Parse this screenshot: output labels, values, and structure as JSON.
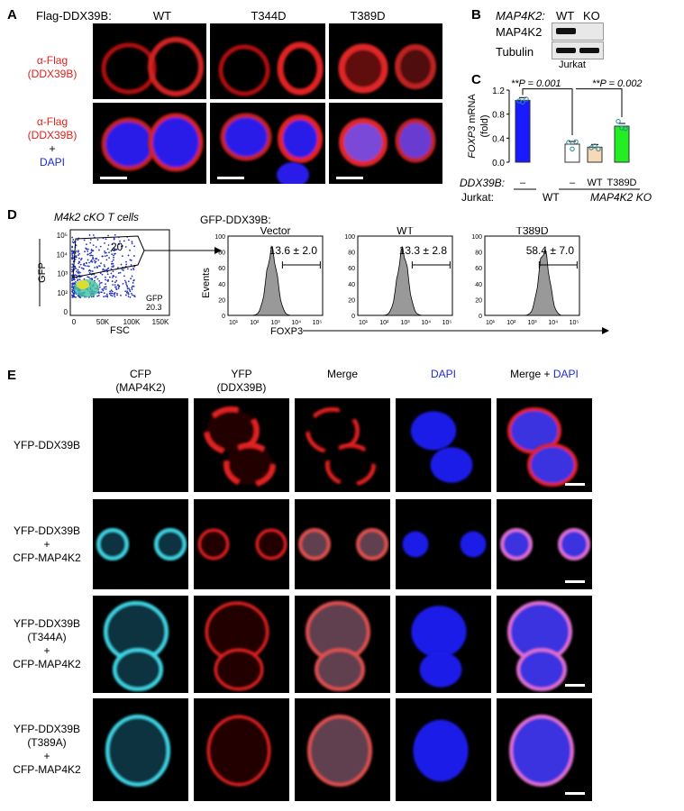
{
  "panelA": {
    "label": "A",
    "header": "Flag-DDX39B:",
    "columns": [
      "WT",
      "T344D",
      "T389D"
    ],
    "row1": [
      "α-Flag",
      "(DDX39B)"
    ],
    "row2": [
      "α-Flag",
      "(DDX39B)",
      "+",
      "DAPI"
    ]
  },
  "panelB": {
    "label": "B",
    "gene": "MAP4K2:",
    "lanes": [
      "WT",
      "KO"
    ],
    "bands": [
      "MAP4K2",
      "Tubulin"
    ],
    "cell": "Jurkat"
  },
  "panelC": {
    "label": "C",
    "pvals": [
      "**P = 0.001",
      "**P = 0.002"
    ],
    "rowDDX": "DDX39B:",
    "rowDDXvals": [
      "–",
      "–",
      "WT",
      "T389D"
    ],
    "rowJurkat": "Jurkat:",
    "jurkatWT": "WT",
    "jurkatKO": "MAP4K2  KO",
    "chart_data": {
      "type": "bar",
      "ylabel": "FOXP3 mRNA (fold)",
      "ylim": [
        0,
        1.2
      ],
      "yticks": [
        "0.0",
        "0.4",
        "0.8",
        "1.2"
      ],
      "categories": [
        "WT –",
        "KO –",
        "KO WT",
        "KO T389D"
      ],
      "values": [
        1.03,
        0.3,
        0.25,
        0.6
      ],
      "points": [
        [
          1.02,
          1.0,
          1.05
        ],
        [
          0.33,
          0.22,
          0.34
        ],
        [
          0.24,
          0.27,
          0.22
        ],
        [
          0.68,
          0.57,
          0.56
        ]
      ],
      "colors": [
        "#1a1aff",
        "#ffffff",
        "#f5d9b8",
        "#22ee22"
      ]
    }
  },
  "panelD": {
    "label": "D",
    "title": "M4k2 cKO T cells",
    "gfpLabel": "GFP-DDX39B:",
    "gateValue": "20",
    "gateNote": [
      "GFP",
      "20.3"
    ],
    "dotplot": {
      "xlabel": "FSC",
      "ylabel": "GFP",
      "xticks": [
        "0",
        "50K",
        "100K",
        "150K"
      ],
      "yticks": [
        "0",
        "10²",
        "10³",
        "10⁴",
        "10⁵"
      ]
    },
    "histograms": [
      {
        "title": "Vector",
        "stat": "13.6 ± 2.0",
        "peak": 2.85
      },
      {
        "title": "WT",
        "stat": "13.3 ± 2.8",
        "peak": 2.9
      },
      {
        "title": "T389D",
        "stat": "58.4 ± 7.0",
        "peak": 3.5
      }
    ],
    "histYticks": [
      "0",
      "20",
      "40",
      "60",
      "80",
      "100"
    ],
    "histXticks": [
      "10¹",
      "10²",
      "10³",
      "10⁴",
      "10⁵"
    ],
    "eventsLabel": "Events",
    "foxp3Label": "FOXP3"
  },
  "panelE": {
    "label": "E",
    "columns": [
      {
        "l1": "CFP",
        "l2": "(MAP4K2)"
      },
      {
        "l1": "YFP",
        "l2": "(DDX39B)"
      },
      {
        "l1": "Merge",
        "l2": ""
      },
      {
        "l1": "DAPI",
        "l2": ""
      },
      {
        "l1": "Merge + ",
        "l2": "DAPI"
      }
    ],
    "rows": [
      [
        "YFP-DDX39B"
      ],
      [
        "YFP-DDX39B",
        "+",
        "CFP-MAP4K2"
      ],
      [
        "YFP-DDX39B",
        "(T344A)",
        "+",
        "CFP-MAP4K2"
      ],
      [
        "YFP-DDX39B",
        "(T389A)",
        "+",
        "CFP-MAP4K2"
      ]
    ]
  }
}
